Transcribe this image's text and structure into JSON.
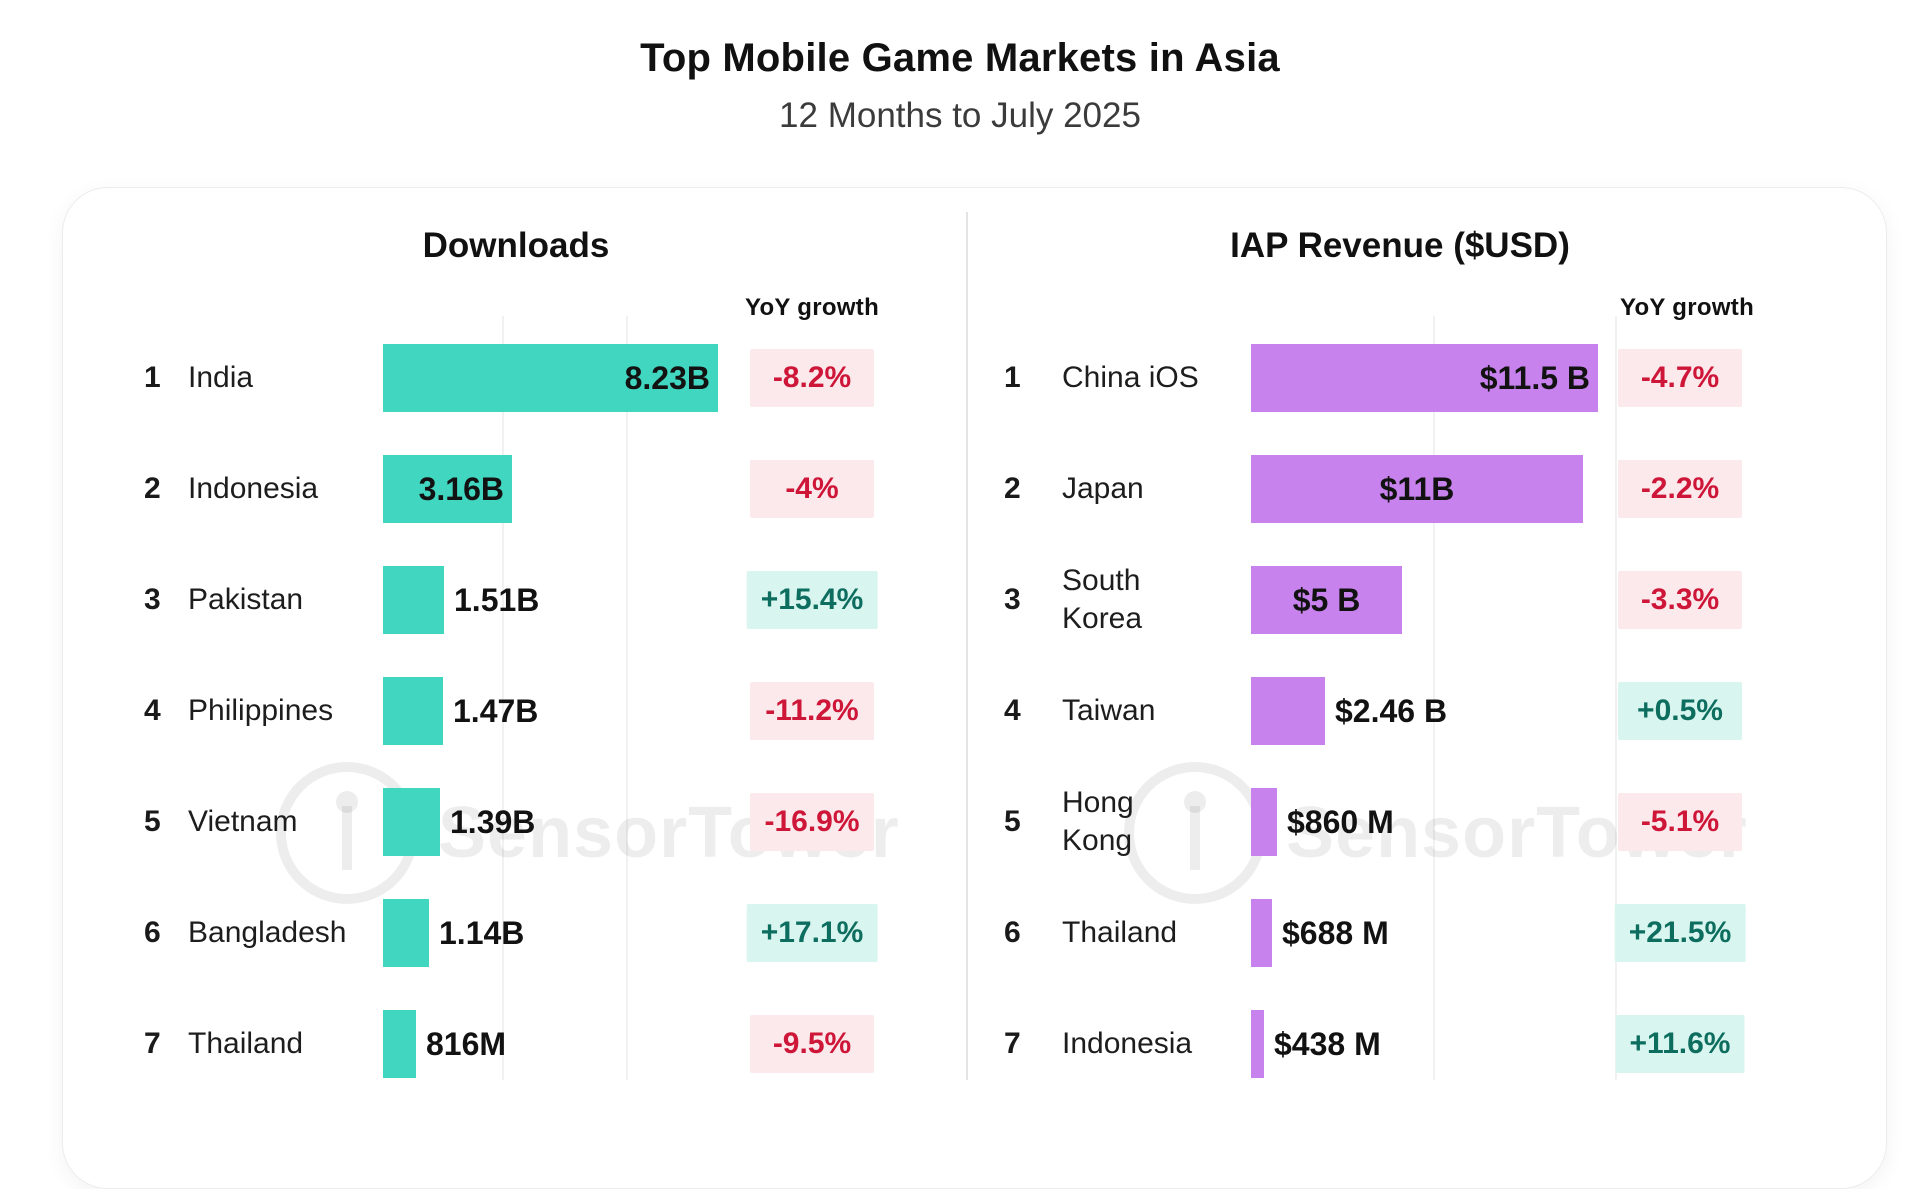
{
  "header": {
    "title": "Top Mobile Game Markets in Asia",
    "subtitle": "12 Months to July 2025"
  },
  "watermark": {
    "text": "SensorTower"
  },
  "colors": {
    "downloads_bar": "#41D6C0",
    "revenue_bar": "#C882EE",
    "negative_badge_bg": "#FBE9EC",
    "negative_text": "#CE1638",
    "positive_badge_bg": "#D9F5EF",
    "positive_text": "#0D6E60"
  },
  "chart_data": [
    {
      "type": "bar",
      "orientation": "horizontal",
      "title": "Downloads",
      "yoy_header": "YoY growth",
      "bar_color": "#41D6C0",
      "max_value": 8.23,
      "value_unit": "downloads",
      "rows": [
        {
          "rank": "1",
          "label": "India",
          "value": 8.23,
          "value_label": "8.23B",
          "yoy": "-8.2%",
          "trend": "down",
          "label_position": "inside-right"
        },
        {
          "rank": "2",
          "label": "Indonesia",
          "value": 3.16,
          "value_label": "3.16B",
          "yoy": "-4%",
          "trend": "down",
          "label_position": "inside-right"
        },
        {
          "rank": "3",
          "label": "Pakistan",
          "value": 1.51,
          "value_label": "1.51B",
          "yoy": "+15.4%",
          "trend": "up",
          "label_position": "outside"
        },
        {
          "rank": "4",
          "label": "Philippines",
          "value": 1.47,
          "value_label": "1.47B",
          "yoy": "-11.2%",
          "trend": "down",
          "label_position": "outside"
        },
        {
          "rank": "5",
          "label": "Vietnam",
          "value": 1.39,
          "value_label": "1.39B",
          "yoy": "-16.9%",
          "trend": "down",
          "label_position": "outside"
        },
        {
          "rank": "6",
          "label": "Bangladesh",
          "value": 1.14,
          "value_label": "1.14B",
          "yoy": "+17.1%",
          "trend": "up",
          "label_position": "outside"
        },
        {
          "rank": "7",
          "label": "Thailand",
          "value": 0.816,
          "value_label": "816M",
          "yoy": "-9.5%",
          "trend": "down",
          "label_position": "outside"
        }
      ]
    },
    {
      "type": "bar",
      "orientation": "horizontal",
      "title": "IAP Revenue ($USD)",
      "yoy_header": "YoY growth",
      "bar_color": "#C882EE",
      "max_value": 11.5,
      "value_unit": "USD",
      "rows": [
        {
          "rank": "1",
          "label": "China iOS",
          "value": 11.5,
          "value_label": "$11.5 B",
          "yoy": "-4.7%",
          "trend": "down",
          "label_position": "inside-right"
        },
        {
          "rank": "2",
          "label": "Japan",
          "value": 11,
          "value_label": "$11B",
          "yoy": "-2.2%",
          "trend": "down",
          "label_position": "inside-center"
        },
        {
          "rank": "3",
          "label": "South\nKorea",
          "value": 5,
          "value_label": "$5 B",
          "yoy": "-3.3%",
          "trend": "down",
          "label_position": "inside-center"
        },
        {
          "rank": "4",
          "label": "Taiwan",
          "value": 2.46,
          "value_label": "$2.46 B",
          "yoy": "+0.5%",
          "trend": "up",
          "label_position": "outside"
        },
        {
          "rank": "5",
          "label": "Hong\nKong",
          "value": 0.86,
          "value_label": "$860 M",
          "yoy": "-5.1%",
          "trend": "down",
          "label_position": "outside"
        },
        {
          "rank": "6",
          "label": "Thailand",
          "value": 0.688,
          "value_label": "$688 M",
          "yoy": "+21.5%",
          "trend": "up",
          "label_position": "outside"
        },
        {
          "rank": "7",
          "label": "Indonesia",
          "value": 0.438,
          "value_label": "$438 M",
          "yoy": "+11.6%",
          "trend": "up",
          "label_position": "outside"
        }
      ]
    }
  ]
}
